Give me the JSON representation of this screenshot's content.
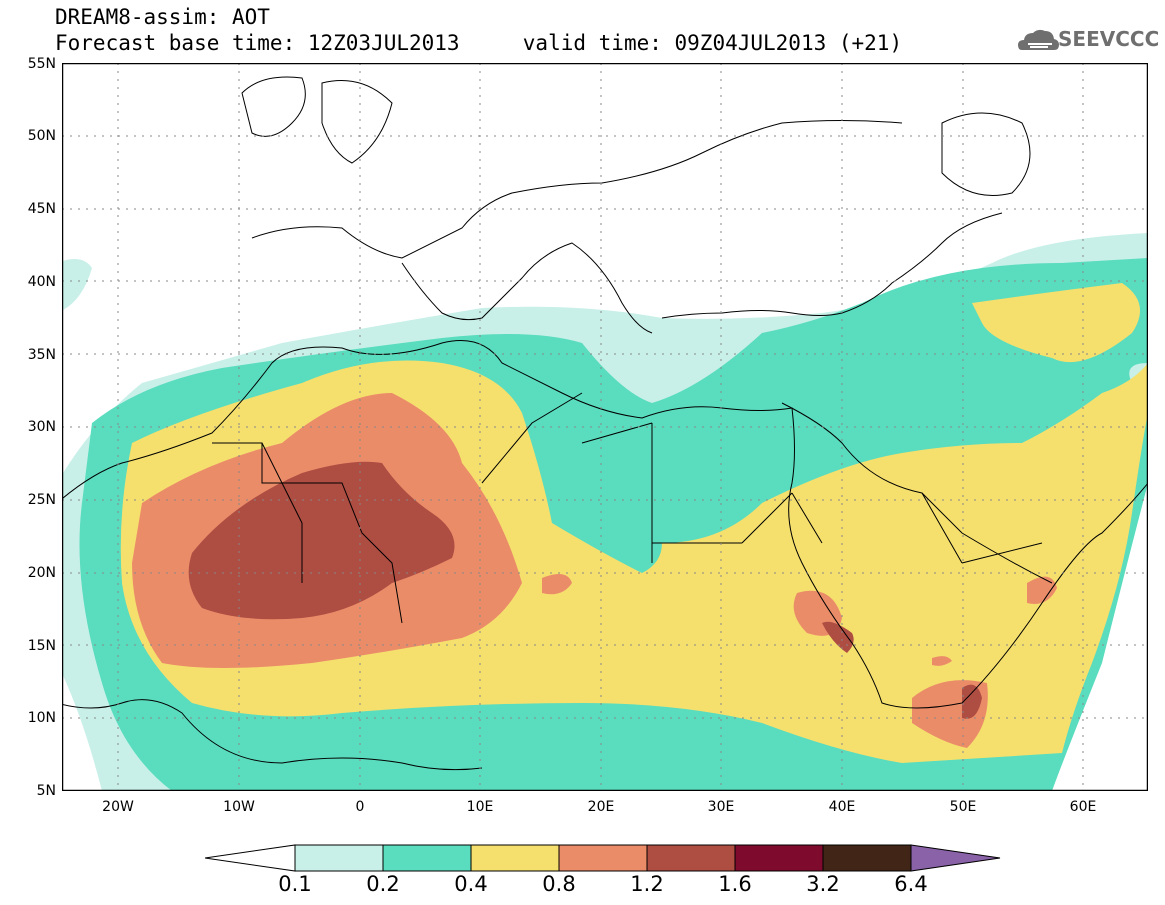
{
  "header": {
    "line1": "DREAM8-assim: AOT",
    "line2": "Forecast base time: 12Z03JUL2013     valid time: 09Z04JUL2013 (+21)"
  },
  "logo": {
    "text": "SEEVCCC",
    "icon": "cloud-icon",
    "color": "#6f6f6f"
  },
  "map": {
    "lat_labels": [
      "55N",
      "50N",
      "45N",
      "40N",
      "35N",
      "30N",
      "25N",
      "20N",
      "15N",
      "10N",
      "5N"
    ],
    "lon_labels": [
      "20W",
      "10W",
      "0",
      "10E",
      "20E",
      "30E",
      "40E",
      "50E",
      "60E"
    ],
    "lat_range": [
      5,
      55
    ],
    "lon_range": [
      -25,
      65
    ],
    "grid": true
  },
  "legend": {
    "levels": [
      "0.1",
      "0.2",
      "0.4",
      "0.8",
      "1.2",
      "1.6",
      "3.2",
      "6.4"
    ],
    "colors": [
      "#c8f0e8",
      "#5adcbe",
      "#f5e06e",
      "#eb8c69",
      "#ae4d42",
      "#7e0a2e",
      "#412618",
      "#8a62a8"
    ],
    "under_color": "#ffffff"
  }
}
